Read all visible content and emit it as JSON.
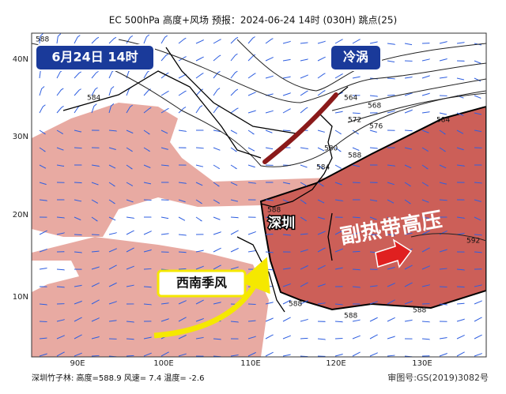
{
  "header": {
    "title": "EC 500hPa 高度+风场  预报：2024-06-24 14时 (030H) 跳点(25)"
  },
  "labels": {
    "time": "6月24日 14时",
    "cold_vortex": "冷涡",
    "city": "深圳",
    "subtropical_high": "副热带高压",
    "monsoon": "西南季风"
  },
  "axes": {
    "lat": [
      "40N",
      "30N",
      "20N",
      "10N"
    ],
    "lon": [
      "90E",
      "100E",
      "110E",
      "120E",
      "130E"
    ]
  },
  "contours": [
    "588",
    "584",
    "564",
    "568",
    "572",
    "576",
    "584",
    "580",
    "584",
    "588",
    "588",
    "592",
    "588",
    "588",
    "588"
  ],
  "footer": {
    "station": "深圳竹子林: 高度=588.9   风速= 7.4   温度= -2.6",
    "approval": "审图号:GS(2019)3082号"
  }
}
